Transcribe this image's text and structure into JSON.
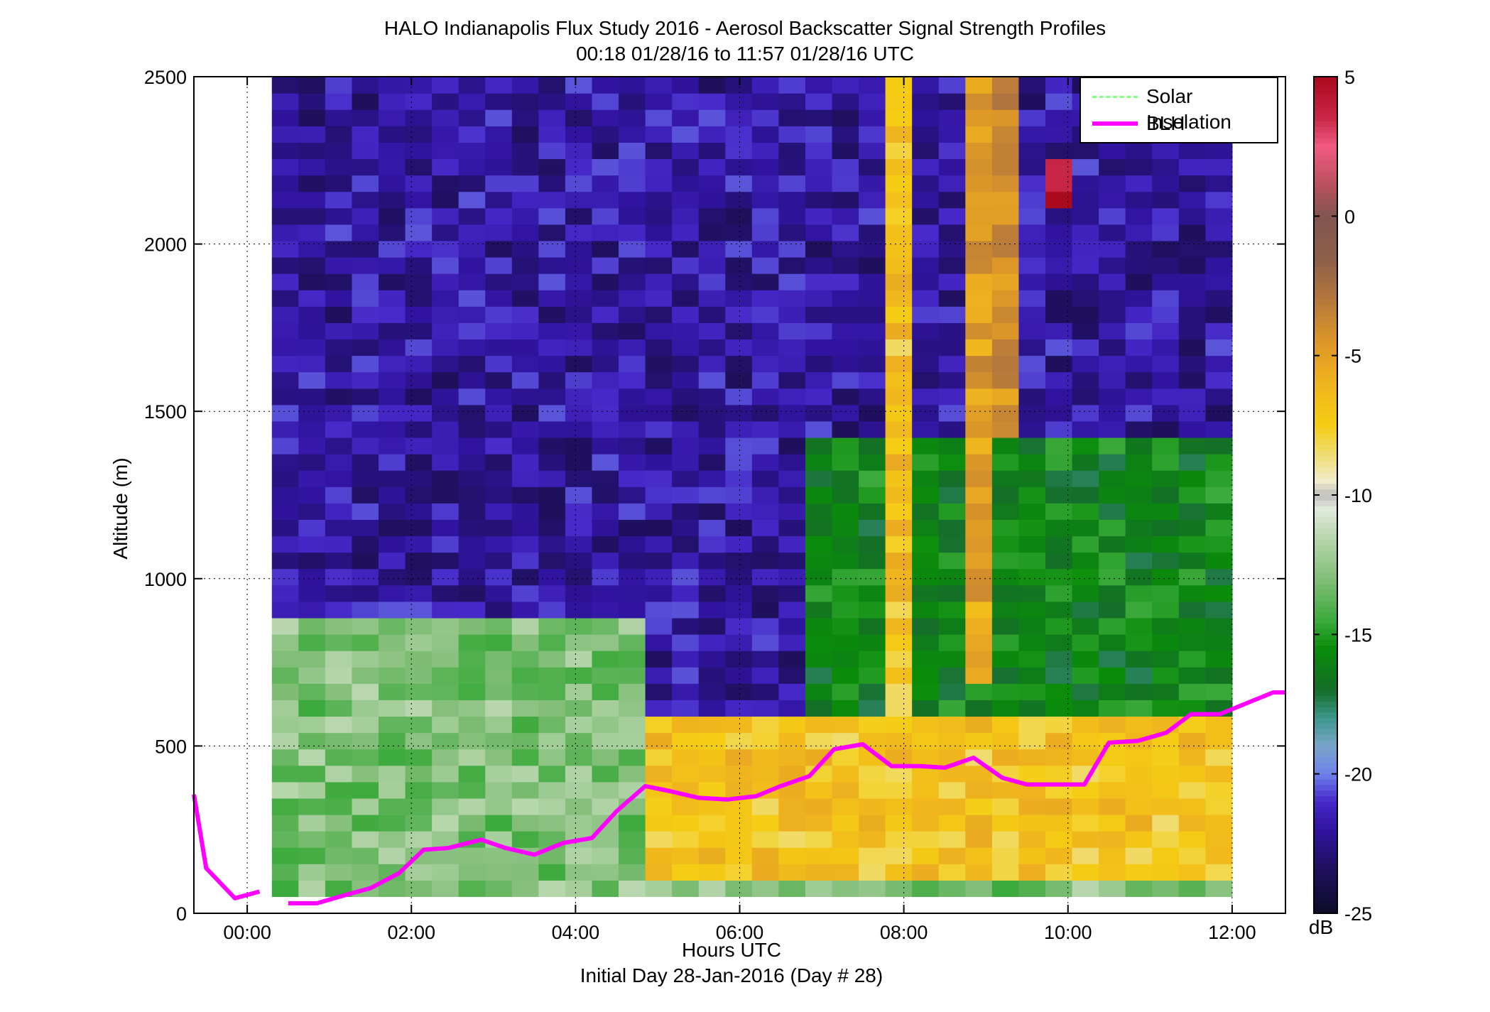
{
  "title": {
    "line1": "HALO Indianapolis Flux Study 2016 - Aerosol Backscatter Signal Strength Profiles",
    "line2": "00:18 01/28/16 to 11:57 01/28/16  UTC"
  },
  "chart_data": {
    "type": "heatmap",
    "xlabel": "Hours UTC",
    "xlabel2": "Initial Day 28-Jan-2016 (Day # 28)",
    "ylabel": "Altitude (m)",
    "xlim": [
      -0.65,
      12.65
    ],
    "ylim": [
      0,
      2500
    ],
    "x_ticks": [
      0,
      2,
      4,
      6,
      8,
      10,
      12
    ],
    "x_tick_labels": [
      "00:00",
      "02:00",
      "04:00",
      "06:00",
      "08:00",
      "10:00",
      "12:00"
    ],
    "y_ticks": [
      0,
      500,
      1000,
      1500,
      2000,
      2500
    ],
    "y_tick_labels": [
      "0",
      "500",
      "1000",
      "1500",
      "2000",
      "2500"
    ],
    "grid": true,
    "colorbar": {
      "label": "dB",
      "range": [
        -25,
        5
      ],
      "ticks": [
        5,
        0,
        -5,
        -10,
        -15,
        -20,
        -25
      ],
      "tick_labels": [
        "5",
        "0",
        "-5",
        "-10",
        "-15",
        "-20",
        "-25"
      ]
    },
    "heatmap": {
      "units": "dB",
      "x_start": 0.3,
      "x_end": 12.0,
      "y_start": 50,
      "y_end": 2500,
      "n_cols": 36,
      "n_rows": 50,
      "approx_layers": [
        {
          "x": [
            0.3,
            12.0
          ],
          "y": [
            50,
            100
          ],
          "db": -13
        },
        {
          "x": [
            0.3,
            4.8
          ],
          "y": [
            100,
            900
          ],
          "db": -13
        },
        {
          "x": [
            4.8,
            12.0
          ],
          "y": [
            100,
            600
          ],
          "db": -7
        },
        {
          "x": [
            0.3,
            12.0
          ],
          "y": [
            900,
            2500
          ],
          "db": -22
        },
        {
          "x": [
            6.8,
            12.0
          ],
          "y": [
            600,
            1400
          ],
          "db": -16
        },
        {
          "x": [
            7.7,
            8.0
          ],
          "y": [
            300,
            2500
          ],
          "db": -7
        },
        {
          "x": [
            8.7,
            9.0
          ],
          "y": [
            700,
            2500
          ],
          "db": -5
        },
        {
          "x": [
            9.0,
            9.3
          ],
          "y": [
            1400,
            2500
          ],
          "db": -4
        },
        {
          "x": [
            9.8,
            10.2
          ],
          "y": [
            2100,
            2250
          ],
          "db": 4
        }
      ]
    },
    "series": [
      {
        "name": "Solar Insolation",
        "color": "#80ff80",
        "style": "dashed",
        "x": [],
        "y": []
      },
      {
        "name": "BLH",
        "color": "#ff00ff",
        "x": [
          -0.65,
          -0.5,
          -0.15,
          0.15,
          0.5,
          0.85,
          1.2,
          1.5,
          1.85,
          2.15,
          2.45,
          2.85,
          3.15,
          3.5,
          3.85,
          4.2,
          4.5,
          4.85,
          5.15,
          5.5,
          5.85,
          6.2,
          6.5,
          6.85,
          7.15,
          7.5,
          7.85,
          8.2,
          8.5,
          8.85,
          9.2,
          9.5,
          9.85,
          10.2,
          10.5,
          10.85,
          11.2,
          11.5,
          11.85,
          12.2,
          12.5,
          12.65
        ],
        "y": [
          355,
          135,
          45,
          65,
          30,
          30,
          55,
          75,
          120,
          190,
          195,
          220,
          195,
          175,
          210,
          225,
          305,
          380,
          365,
          345,
          340,
          350,
          380,
          410,
          490,
          505,
          440,
          440,
          435,
          465,
          405,
          385,
          385,
          385,
          510,
          515,
          540,
          595,
          595,
          630,
          660,
          660
        ],
        "gaps_after_index": [
          3
        ]
      }
    ],
    "legend": {
      "position": "top-right",
      "entries": [
        "Solar Insolation",
        "BLH"
      ]
    }
  }
}
